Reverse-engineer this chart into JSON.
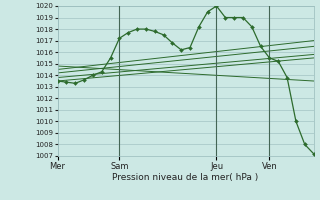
{
  "background_color": "#cce8e4",
  "grid_color": "#99bbbb",
  "line_color": "#2d6b2d",
  "title": "Pression niveau de la mer( hPa )",
  "ylim": [
    1007,
    1020
  ],
  "yticks": [
    1007,
    1008,
    1009,
    1010,
    1011,
    1012,
    1013,
    1014,
    1015,
    1016,
    1017,
    1018,
    1019,
    1020
  ],
  "day_labels": [
    "Mer",
    "Sam",
    "Jeu",
    "Ven"
  ],
  "day_positions": [
    0,
    7,
    18,
    24
  ],
  "xlim": [
    0,
    29
  ],
  "jagged_x": [
    0,
    1,
    2,
    3,
    4,
    5,
    6,
    7,
    8,
    9,
    10,
    11,
    12,
    13,
    14,
    15,
    16,
    17,
    18,
    19,
    20,
    21,
    22,
    23,
    24,
    25,
    26,
    27,
    28,
    29
  ],
  "jagged_y": [
    1013.5,
    1013.4,
    1013.3,
    1013.6,
    1014.0,
    1014.3,
    1015.5,
    1017.2,
    1017.7,
    1018.0,
    1018.0,
    1017.8,
    1017.5,
    1016.8,
    1016.2,
    1016.4,
    1018.2,
    1019.5,
    1020.0,
    1019.0,
    1019.0,
    1019.0,
    1018.2,
    1016.5,
    1015.5,
    1015.2,
    1013.8,
    1010.0,
    1008.0,
    1007.2
  ],
  "trend_lines": [
    {
      "x": [
        0,
        29
      ],
      "y": [
        1014.8,
        1013.5
      ]
    },
    {
      "x": [
        0,
        29
      ],
      "y": [
        1013.5,
        1015.5
      ]
    },
    {
      "x": [
        0,
        29
      ],
      "y": [
        1013.8,
        1015.8
      ]
    },
    {
      "x": [
        0,
        29
      ],
      "y": [
        1014.2,
        1016.5
      ]
    },
    {
      "x": [
        0,
        29
      ],
      "y": [
        1014.5,
        1017.0
      ]
    }
  ]
}
